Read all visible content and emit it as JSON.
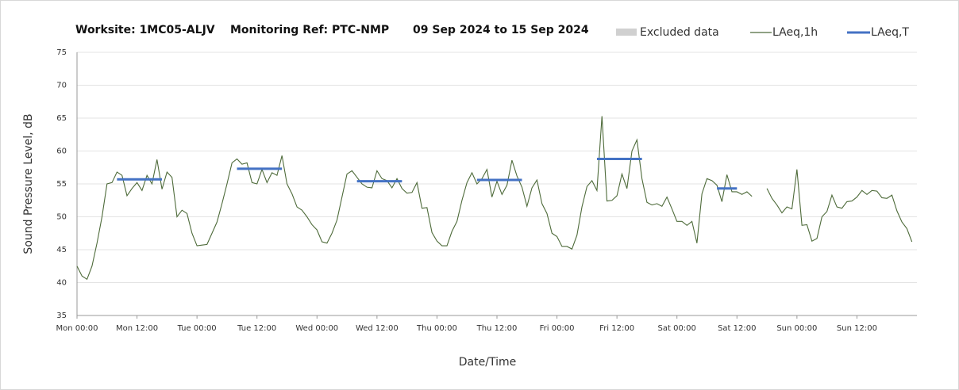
{
  "chart_data": {
    "type": "line",
    "title_parts": [
      "Worksite: 1MC05-ALJV",
      "Monitoring Ref: PTC-NMP",
      "09 Sep 2024 to 15 Sep 2024"
    ],
    "x_label": "Date/Time",
    "y_label": "Sound Pressure Level, dB",
    "xlim": [
      0,
      168
    ],
    "ylim": [
      35,
      75
    ],
    "yticks": [
      35,
      40,
      45,
      50,
      55,
      60,
      65,
      70,
      75
    ],
    "xticks": [
      {
        "value": 0,
        "label": "Mon 00:00"
      },
      {
        "value": 12,
        "label": "Mon 12:00"
      },
      {
        "value": 24,
        "label": "Tue 00:00"
      },
      {
        "value": 36,
        "label": "Tue 12:00"
      },
      {
        "value": 48,
        "label": "Wed 00:00"
      },
      {
        "value": 60,
        "label": "Wed 12:00"
      },
      {
        "value": 72,
        "label": "Thu 00:00"
      },
      {
        "value": 84,
        "label": "Thu 12:00"
      },
      {
        "value": 96,
        "label": "Fri 00:00"
      },
      {
        "value": 108,
        "label": "Fri 12:00"
      },
      {
        "value": 120,
        "label": "Sat 00:00"
      },
      {
        "value": 132,
        "label": "Sat 12:00"
      },
      {
        "value": 144,
        "label": "Sun 00:00"
      },
      {
        "value": 156,
        "label": "Sun 12:00"
      }
    ],
    "grid": true,
    "legend_position": "top-right",
    "excluded_legend": {
      "name": "Excluded data",
      "color": "#d0d0d0"
    },
    "series": [
      {
        "name": "LAeq,1h",
        "color": "#4e6b3a",
        "x": [
          0,
          1,
          2,
          3,
          4,
          5,
          6,
          7,
          8,
          9,
          10,
          11,
          12,
          13,
          14,
          15,
          16,
          17,
          18,
          19,
          20,
          21,
          22,
          23,
          24,
          25,
          26,
          27,
          28,
          29,
          30,
          31,
          32,
          33,
          34,
          35,
          36,
          37,
          38,
          39,
          40,
          41,
          42,
          43,
          44,
          45,
          46,
          47,
          48,
          49,
          50,
          51,
          52,
          53,
          54,
          55,
          56,
          57,
          58,
          59,
          60,
          61,
          62,
          63,
          64,
          65,
          66,
          67,
          68,
          69,
          70,
          71,
          72,
          73,
          74,
          75,
          76,
          77,
          78,
          79,
          80,
          81,
          82,
          83,
          84,
          85,
          86,
          87,
          88,
          89,
          90,
          91,
          92,
          93,
          94,
          95,
          96,
          97,
          98,
          99,
          100,
          101,
          102,
          103,
          104,
          105,
          106,
          107,
          108,
          109,
          110,
          111,
          112,
          113,
          114,
          115,
          116,
          117,
          118,
          119,
          120,
          121,
          122,
          123,
          124,
          125,
          126,
          127,
          128,
          129,
          130,
          131,
          132,
          133,
          134,
          135,
          136,
          137,
          138,
          139,
          140,
          141,
          142,
          143,
          144,
          145,
          146,
          147,
          148,
          149,
          150,
          151,
          152,
          153,
          154,
          155,
          156,
          157,
          158,
          159,
          160,
          161,
          162,
          163,
          164,
          165,
          166,
          167
        ],
        "values": [
          42.5,
          41,
          40.5,
          42.5,
          46,
          50,
          55,
          55.2,
          56.8,
          56.3,
          53.2,
          54.3,
          55.2,
          54,
          56.3,
          55,
          58.7,
          54.2,
          56.8,
          56,
          50,
          51,
          50.5,
          47.5,
          45.6,
          45.7,
          45.8,
          47.5,
          49.2,
          52,
          55,
          58.2,
          58.8,
          58,
          58.2,
          55.2,
          55,
          57.2,
          55.2,
          56.7,
          56.3,
          59.3,
          55,
          53.5,
          51.5,
          51,
          50,
          48.8,
          48,
          46.2,
          46,
          47.5,
          49.5,
          53,
          56.5,
          57,
          56,
          55,
          54.5,
          54.4,
          57,
          55.8,
          55.5,
          54.4,
          55.8,
          54.3,
          53.6,
          53.7,
          55.2,
          51.3,
          51.4,
          47.6,
          46.3,
          45.6,
          45.6,
          47.8,
          49.3,
          52.5,
          55.2,
          56.7,
          55,
          55.8,
          57.2,
          53,
          55.4,
          53.4,
          54.8,
          58.6,
          56.2,
          54.5,
          51.6,
          54.4,
          55.6,
          52,
          50.5,
          47.5,
          47,
          45.5,
          45.5,
          45.1,
          47.2,
          51.5,
          54.6,
          55.5,
          54,
          65.3,
          52.4,
          52.5,
          53.2,
          56.5,
          54.3,
          60,
          61.7,
          55.8,
          52.2,
          51.8,
          52,
          51.6,
          53,
          51.2,
          49.3,
          49.3,
          48.7,
          49.3,
          46,
          53.5,
          55.8,
          55.5,
          54.8,
          52.3,
          56.4,
          53.8,
          53.8,
          53.4,
          53.8,
          53.1,
          null,
          null,
          54.3,
          52.8,
          51.8,
          50.6,
          51.5,
          51.2,
          57.2,
          48.7,
          48.8,
          46.3,
          46.7,
          50,
          50.8,
          53.3,
          51.5,
          51.3,
          52.3,
          52.4,
          53,
          54,
          53.4,
          54,
          53.9,
          52.9,
          52.8,
          53.3,
          50.9,
          49.2,
          48.2,
          46.2
        ]
      },
      {
        "name": "LAeq,T",
        "color": "#4472c4",
        "x_start": [
          8,
          32,
          56,
          80,
          104,
          128
        ],
        "x_end": [
          17,
          41,
          65,
          89,
          113,
          132
        ],
        "values": [
          55.7,
          57.3,
          55.4,
          55.6,
          58.8,
          54.3
        ]
      }
    ]
  }
}
